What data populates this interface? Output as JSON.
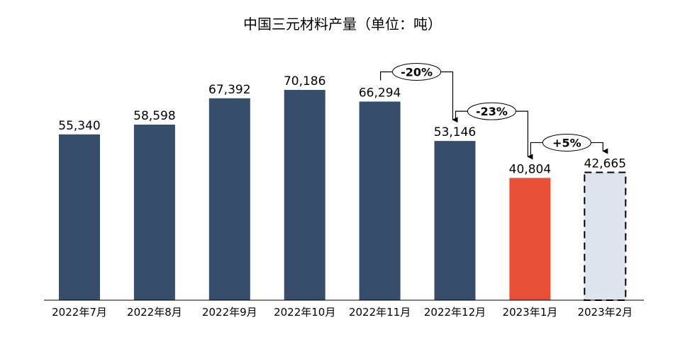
{
  "chart_data": {
    "type": "bar",
    "title": "中国三元材料产量（单位：吨）",
    "categories": [
      "2022年7月",
      "2022年8月",
      "2022年9月",
      "2022年10月",
      "2022年11月",
      "2022年12月",
      "2023年1月",
      "2023年2月"
    ],
    "values": [
      55340,
      58598,
      67392,
      70186,
      66294,
      53146,
      40804,
      42665
    ],
    "data_labels": [
      "55,340",
      "58,598",
      "67,392",
      "70,186",
      "66,294",
      "53,146",
      "40,804",
      "42,665"
    ],
    "bar_colors": [
      "#374D6C",
      "#374D6C",
      "#374D6C",
      "#374D6C",
      "#374D6C",
      "#374D6C",
      "#E94F34",
      "#DEE4EE"
    ],
    "dashed_bar_index": 7,
    "ylim": [
      0,
      70186
    ],
    "grid": false,
    "annotations": [
      {
        "from": 4,
        "to": 5,
        "label": "-20%"
      },
      {
        "from": 5,
        "to": 6,
        "label": "-23%"
      },
      {
        "from": 6,
        "to": 7,
        "label": "+5%"
      }
    ]
  }
}
